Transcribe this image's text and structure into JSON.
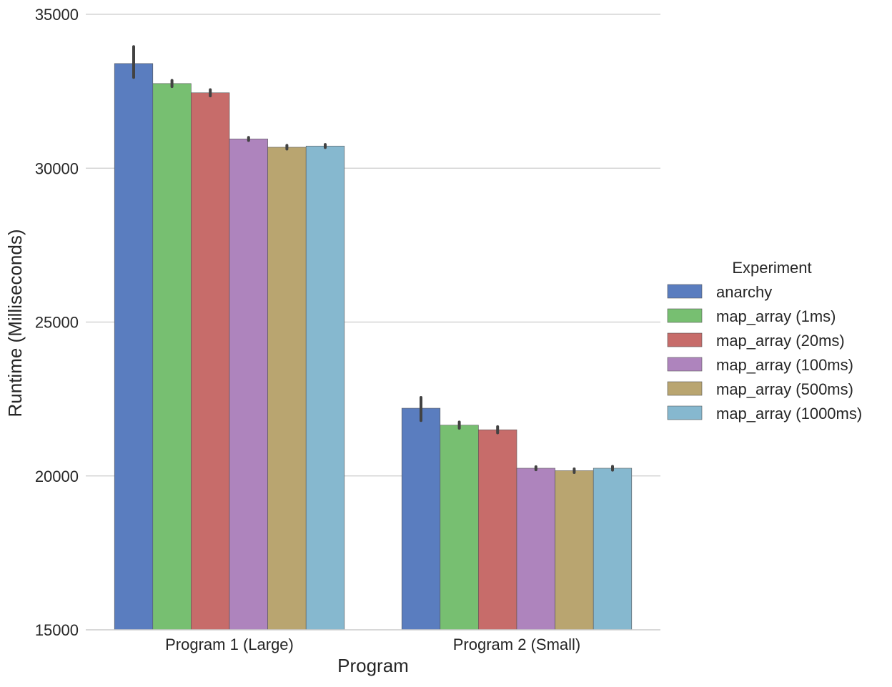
{
  "chart_data": {
    "type": "bar",
    "xlabel": "Program",
    "ylabel": "Runtime (Milliseconds)",
    "ylim": [
      15000,
      35000
    ],
    "yticks": [
      "15000",
      "20000",
      "25000",
      "30000",
      "35000"
    ],
    "grid": "horizontal",
    "categories": [
      "Program 1 (Large)",
      "Program 2 (Small)"
    ],
    "legend": {
      "title": "Experiment",
      "placement": "right"
    },
    "series": [
      {
        "name": "anarchy",
        "color": "#5a7dbf",
        "values": [
          33400,
          22200
        ],
        "error": [
          [
            32950,
            33950
          ],
          [
            21800,
            22550
          ]
        ]
      },
      {
        "name": "map_array (1ms)",
        "color": "#77bf71",
        "values": [
          32750,
          21650
        ],
        "error": [
          [
            32650,
            32850
          ],
          [
            21550,
            21750
          ]
        ]
      },
      {
        "name": "map_array (20ms)",
        "color": "#c76c6a",
        "values": [
          32450,
          21500
        ],
        "error": [
          [
            32350,
            32550
          ],
          [
            21400,
            21600
          ]
        ]
      },
      {
        "name": "map_array (100ms)",
        "color": "#ae84bd",
        "values": [
          30950,
          20250
        ],
        "error": [
          [
            30900,
            31000
          ],
          [
            20200,
            20300
          ]
        ]
      },
      {
        "name": "map_array (500ms)",
        "color": "#b9a570",
        "values": [
          30680,
          20170
        ],
        "error": [
          [
            30620,
            30740
          ],
          [
            20110,
            20230
          ]
        ]
      },
      {
        "name": "map_array (1000ms)",
        "color": "#86b8cf",
        "values": [
          30720,
          20250
        ],
        "error": [
          [
            30670,
            30770
          ],
          [
            20190,
            20310
          ]
        ]
      }
    ]
  }
}
